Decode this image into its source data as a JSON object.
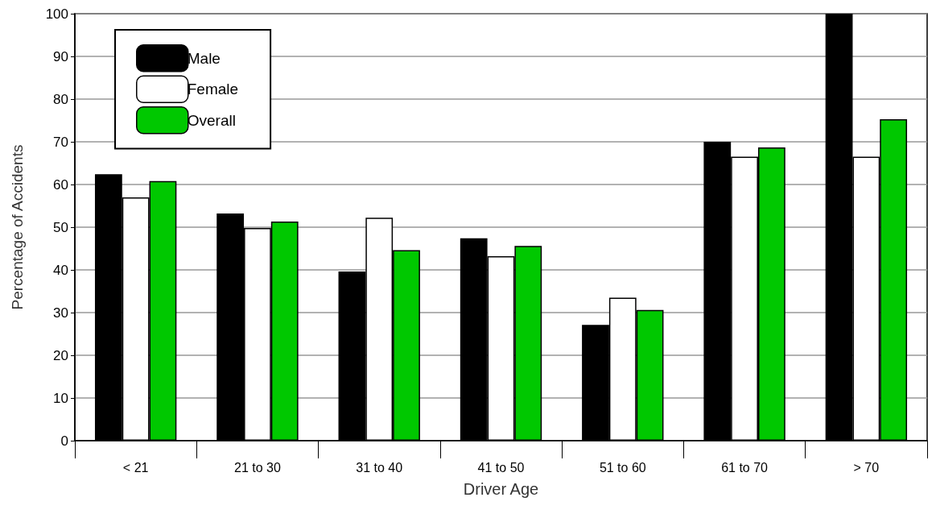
{
  "chart_data": {
    "type": "bar",
    "xlabel": "Driver Age",
    "ylabel": "Percentage of Accidents",
    "categories": [
      "< 21",
      "21 to 30",
      "31 to 40",
      "41 to 50",
      "51 to 60",
      "61 to 70",
      "> 70"
    ],
    "series": [
      {
        "name": "Male",
        "color": "#000000",
        "values": [
          62.4,
          53.2,
          39.6,
          47.4,
          27.1,
          70.0,
          100
        ]
      },
      {
        "name": "Female",
        "color": "#ffffff",
        "values": [
          57.0,
          49.8,
          52.2,
          43.2,
          33.5,
          66.5,
          66.5
        ]
      },
      {
        "name": "Overall",
        "color": "#00c800",
        "values": [
          60.8,
          51.3,
          44.6,
          45.6,
          30.6,
          68.7,
          75.3
        ]
      }
    ],
    "ylim": [
      0,
      100
    ],
    "yticks": [
      0,
      10,
      20,
      30,
      40,
      50,
      60,
      70,
      80,
      90,
      100
    ],
    "grid": "y",
    "legend": "top left"
  }
}
